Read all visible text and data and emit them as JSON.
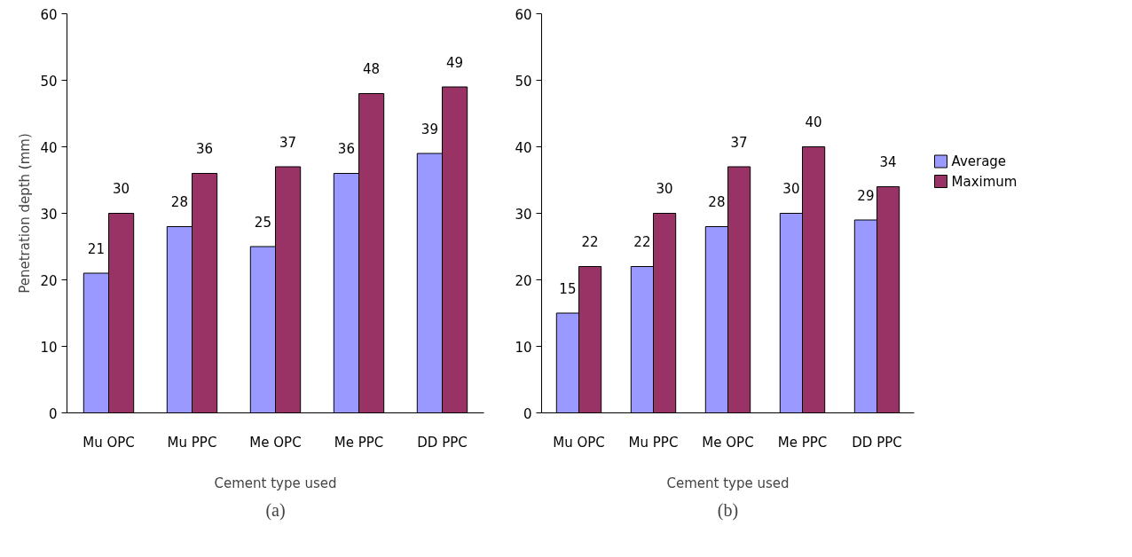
{
  "chart_data": [
    {
      "type": "bar",
      "ylabel": "Penetration depth (mm)",
      "xlabel": "Cement type used",
      "annotations": [
        "(a)"
      ],
      "categories": [
        "Mu OPC",
        "Mu PPC",
        "Me OPC",
        "Me PPC",
        "DD PPC"
      ],
      "series": [
        {
          "color": "#9999ff",
          "values": [
            21,
            28,
            25,
            36,
            39
          ]
        },
        {
          "color": "#993366",
          "values": [
            30,
            36,
            37,
            48,
            49
          ]
        }
      ],
      "ylim": [
        0,
        60
      ],
      "yticks": [
        0,
        10,
        20,
        30,
        40,
        50,
        60
      ],
      "data_labels": true,
      "grid": false,
      "legend": false
    },
    {
      "type": "bar",
      "xlabel": "Cement type used",
      "annotations": [
        "(b)"
      ],
      "categories": [
        "Mu OPC",
        "Mu PPC",
        "Me OPC",
        "Me PPC",
        "DD PPC"
      ],
      "series": [
        {
          "name": "Average",
          "color": "#9999ff",
          "values": [
            15,
            22,
            28,
            30,
            29
          ]
        },
        {
          "name": "Maximum",
          "color": "#993366",
          "values": [
            22,
            30,
            37,
            40,
            34
          ]
        }
      ],
      "ylim": [
        0,
        60
      ],
      "yticks": [
        0,
        10,
        20,
        30,
        40,
        50,
        60
      ],
      "data_labels": true,
      "grid": false,
      "legend": "right"
    }
  ]
}
